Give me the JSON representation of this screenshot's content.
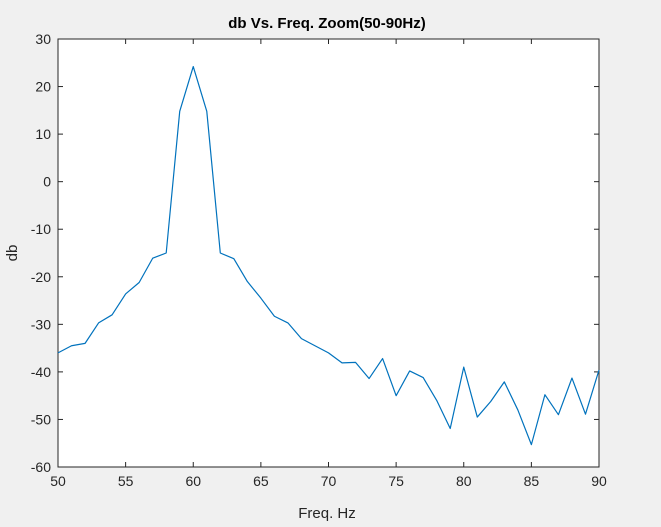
{
  "chart_data": {
    "type": "line",
    "title": "db Vs. Freq. Zoom(50-90Hz)",
    "xlabel": "Freq. Hz",
    "ylabel": "db",
    "xlim": [
      50,
      90
    ],
    "ylim": [
      -60,
      30
    ],
    "xticks": [
      50,
      55,
      60,
      65,
      70,
      75,
      80,
      85,
      90
    ],
    "yticks": [
      -60,
      -50,
      -40,
      -30,
      -20,
      -10,
      0,
      10,
      20,
      30
    ],
    "grid": false,
    "series": [
      {
        "color": "#0072bd",
        "x": [
          50,
          51,
          52,
          53,
          54,
          55,
          56,
          57,
          58,
          59,
          60,
          61,
          62,
          63,
          64,
          65,
          66,
          67,
          68,
          69,
          70,
          71,
          72,
          73,
          74,
          75,
          76,
          77,
          78,
          79,
          80,
          81,
          82,
          83,
          84,
          85,
          86,
          87,
          88,
          89,
          90
        ],
        "y": [
          -36,
          -34.5,
          -34,
          -29.7,
          -28,
          -23.6,
          -21.2,
          -16.1,
          -15,
          14.8,
          24.2,
          14.8,
          -15,
          -16.2,
          -21,
          -24.5,
          -28.3,
          -29.7,
          -33,
          -34.5,
          -36,
          -38.1,
          -38,
          -41.4,
          -37.2,
          -45,
          -39.8,
          -41.2,
          -46,
          -51.9,
          -39,
          -49.5,
          -46.2,
          -42.1,
          -48,
          -55.3,
          -44.8,
          -49,
          -41.3,
          -48.9,
          -39.6
        ]
      }
    ]
  }
}
